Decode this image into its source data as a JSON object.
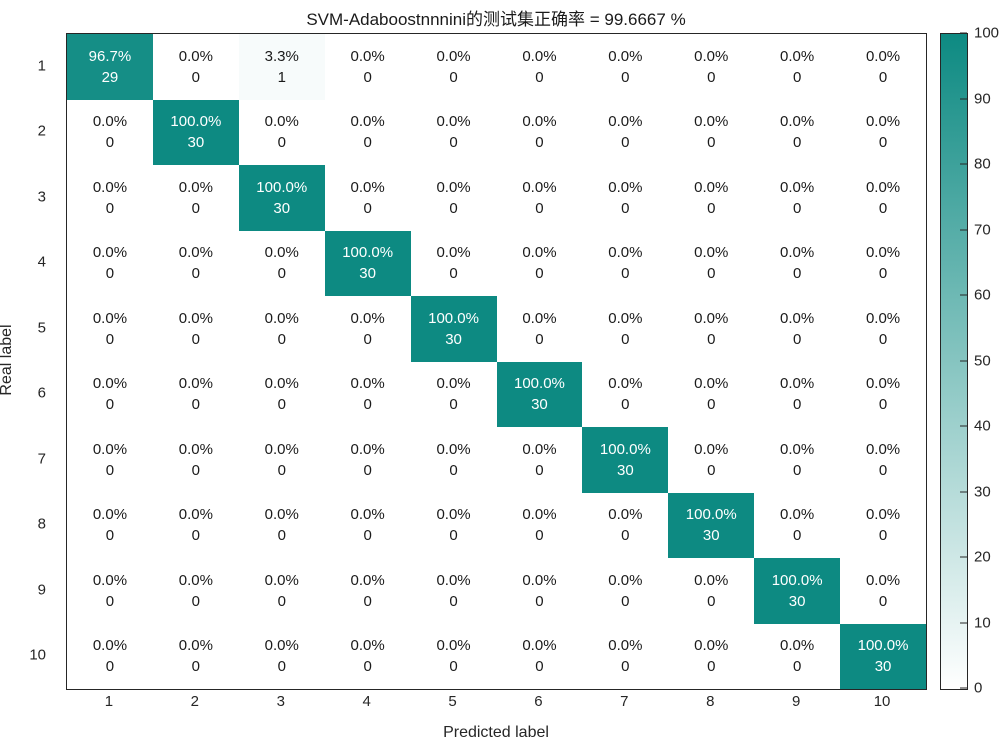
{
  "title": "SVM-Adaboostnnnini的测试集正确率 = 99.6667 %",
  "chart_data": {
    "type": "heatmap",
    "subtype": "confusion-matrix",
    "title": "SVM-Adaboostnnnini的测试集正确率 = 99.6667 %",
    "xlabel": "Predicted label",
    "ylabel": "Real label",
    "x_ticks": [
      "1",
      "2",
      "3",
      "4",
      "5",
      "6",
      "7",
      "8",
      "9",
      "10"
    ],
    "y_ticks": [
      "1",
      "2",
      "3",
      "4",
      "5",
      "6",
      "7",
      "8",
      "9",
      "10"
    ],
    "cell_percents": [
      [
        96.7,
        0.0,
        3.3,
        0.0,
        0.0,
        0.0,
        0.0,
        0.0,
        0.0,
        0.0
      ],
      [
        0.0,
        100.0,
        0.0,
        0.0,
        0.0,
        0.0,
        0.0,
        0.0,
        0.0,
        0.0
      ],
      [
        0.0,
        0.0,
        100.0,
        0.0,
        0.0,
        0.0,
        0.0,
        0.0,
        0.0,
        0.0
      ],
      [
        0.0,
        0.0,
        0.0,
        100.0,
        0.0,
        0.0,
        0.0,
        0.0,
        0.0,
        0.0
      ],
      [
        0.0,
        0.0,
        0.0,
        0.0,
        100.0,
        0.0,
        0.0,
        0.0,
        0.0,
        0.0
      ],
      [
        0.0,
        0.0,
        0.0,
        0.0,
        0.0,
        100.0,
        0.0,
        0.0,
        0.0,
        0.0
      ],
      [
        0.0,
        0.0,
        0.0,
        0.0,
        0.0,
        0.0,
        100.0,
        0.0,
        0.0,
        0.0
      ],
      [
        0.0,
        0.0,
        0.0,
        0.0,
        0.0,
        0.0,
        0.0,
        100.0,
        0.0,
        0.0
      ],
      [
        0.0,
        0.0,
        0.0,
        0.0,
        0.0,
        0.0,
        0.0,
        0.0,
        100.0,
        0.0
      ],
      [
        0.0,
        0.0,
        0.0,
        0.0,
        0.0,
        0.0,
        0.0,
        0.0,
        0.0,
        100.0
      ]
    ],
    "cell_counts": [
      [
        29,
        0,
        1,
        0,
        0,
        0,
        0,
        0,
        0,
        0
      ],
      [
        0,
        30,
        0,
        0,
        0,
        0,
        0,
        0,
        0,
        0
      ],
      [
        0,
        0,
        30,
        0,
        0,
        0,
        0,
        0,
        0,
        0
      ],
      [
        0,
        0,
        0,
        30,
        0,
        0,
        0,
        0,
        0,
        0
      ],
      [
        0,
        0,
        0,
        0,
        30,
        0,
        0,
        0,
        0,
        0
      ],
      [
        0,
        0,
        0,
        0,
        0,
        30,
        0,
        0,
        0,
        0
      ],
      [
        0,
        0,
        0,
        0,
        0,
        0,
        30,
        0,
        0,
        0
      ],
      [
        0,
        0,
        0,
        0,
        0,
        0,
        0,
        30,
        0,
        0
      ],
      [
        0,
        0,
        0,
        0,
        0,
        0,
        0,
        0,
        30,
        0
      ],
      [
        0,
        0,
        0,
        0,
        0,
        0,
        0,
        0,
        0,
        30
      ]
    ],
    "colorbar": {
      "min": 0,
      "max": 100,
      "ticks": [
        0,
        10,
        20,
        30,
        40,
        50,
        60,
        70,
        80,
        90,
        100
      ],
      "color_max": "#0d8a82",
      "color_min": "#ffffff",
      "position": "right"
    },
    "colors": {
      "diagonal_cell": "#0d8a82",
      "offdiag_cell": "#ffffff",
      "diagonal_text": "#ffffff",
      "offdiag_text": "#1a1a1a",
      "axis": "#262626"
    },
    "grid": false,
    "xlim": [
      0.5,
      10.5
    ],
    "ylim": [
      0.5,
      10.5
    ]
  }
}
